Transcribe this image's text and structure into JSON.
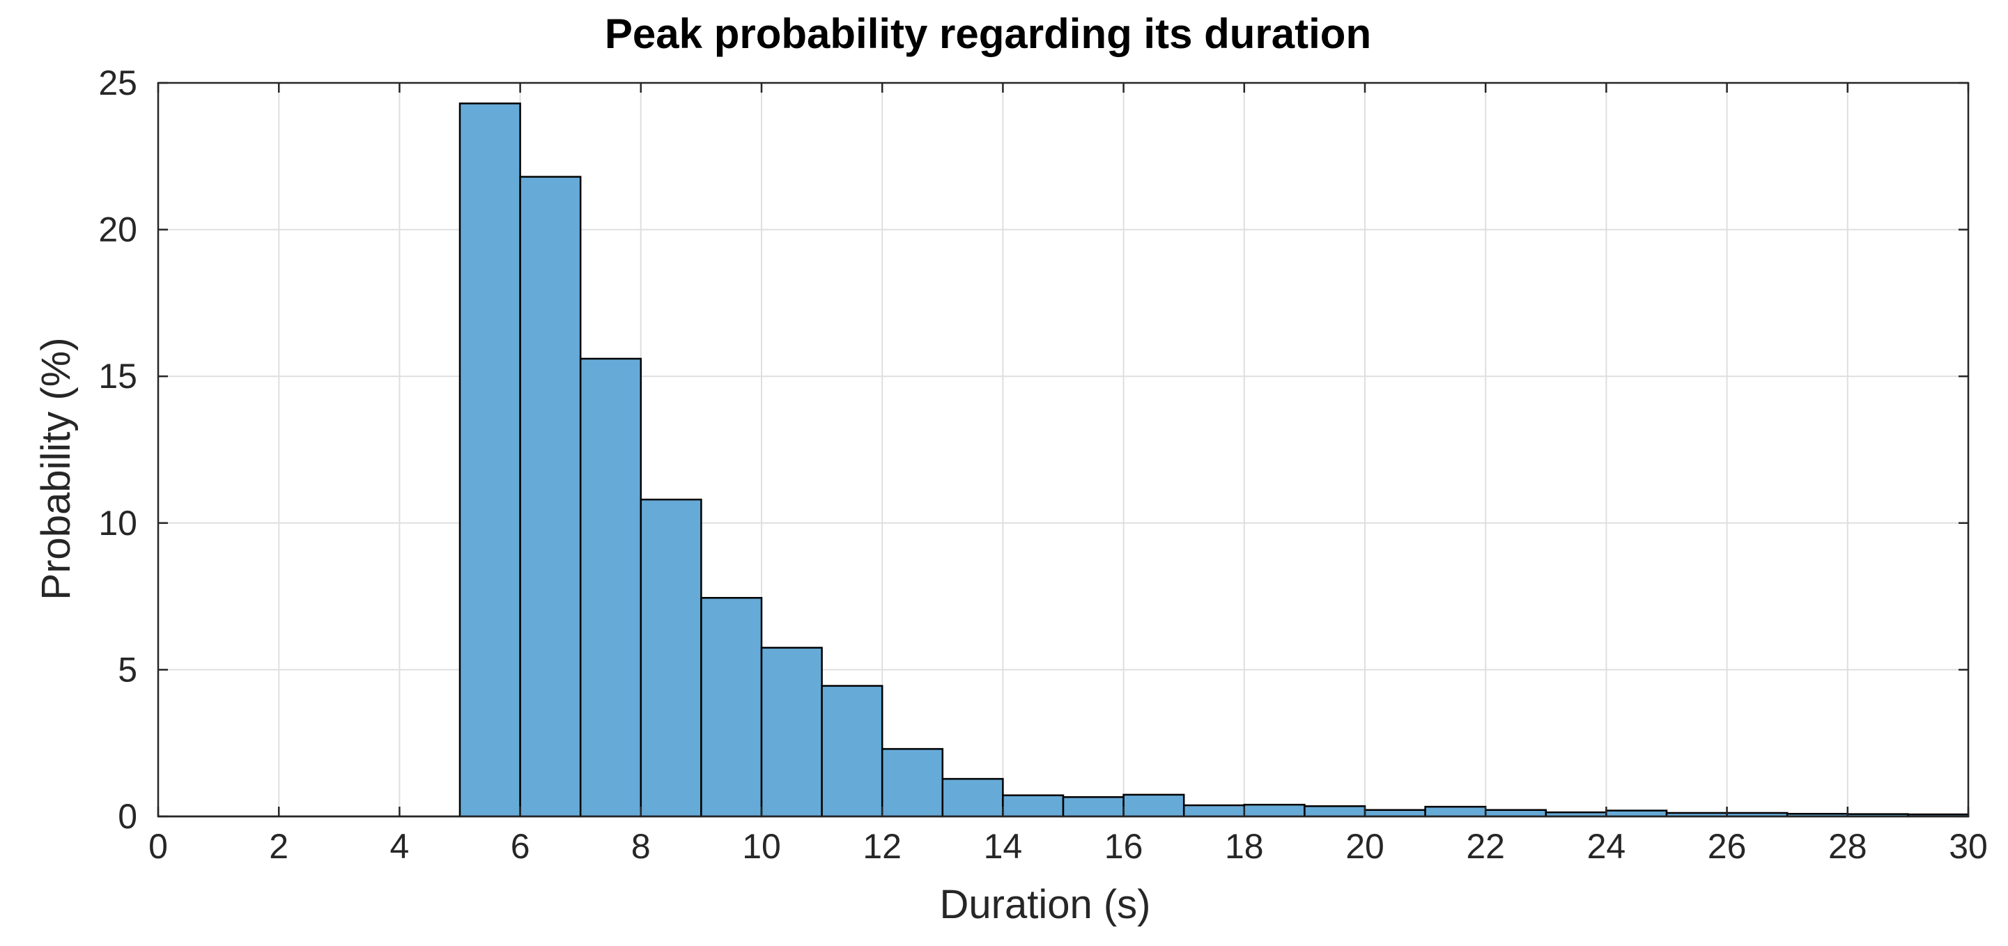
{
  "chart_data": {
    "type": "bar",
    "title": "Peak probability regarding its duration",
    "xlabel": "Duration (s)",
    "ylabel": "Probability (%)",
    "xlim": [
      0,
      30
    ],
    "ylim": [
      0,
      25
    ],
    "xticks": [
      0,
      2,
      4,
      6,
      8,
      10,
      12,
      14,
      16,
      18,
      20,
      22,
      24,
      26,
      28,
      30
    ],
    "yticks": [
      0,
      5,
      10,
      15,
      20,
      25
    ],
    "grid": true,
    "bar_color": "#66aad7",
    "bar_edge_color": "#000000",
    "bins": [
      {
        "x0": 0,
        "x1": 1,
        "value": 0
      },
      {
        "x0": 1,
        "x1": 2,
        "value": 0
      },
      {
        "x0": 2,
        "x1": 3,
        "value": 0
      },
      {
        "x0": 3,
        "x1": 4,
        "value": 0
      },
      {
        "x0": 4,
        "x1": 5,
        "value": 0
      },
      {
        "x0": 5,
        "x1": 6,
        "value": 24.3
      },
      {
        "x0": 6,
        "x1": 7,
        "value": 21.8
      },
      {
        "x0": 7,
        "x1": 8,
        "value": 15.6
      },
      {
        "x0": 8,
        "x1": 9,
        "value": 10.8
      },
      {
        "x0": 9,
        "x1": 10,
        "value": 7.45
      },
      {
        "x0": 10,
        "x1": 11,
        "value": 5.75
      },
      {
        "x0": 11,
        "x1": 12,
        "value": 4.45
      },
      {
        "x0": 12,
        "x1": 13,
        "value": 2.3
      },
      {
        "x0": 13,
        "x1": 14,
        "value": 1.28
      },
      {
        "x0": 14,
        "x1": 15,
        "value": 0.72
      },
      {
        "x0": 15,
        "x1": 16,
        "value": 0.66
      },
      {
        "x0": 16,
        "x1": 17,
        "value": 0.74
      },
      {
        "x0": 17,
        "x1": 18,
        "value": 0.38
      },
      {
        "x0": 18,
        "x1": 19,
        "value": 0.4
      },
      {
        "x0": 19,
        "x1": 20,
        "value": 0.35
      },
      {
        "x0": 20,
        "x1": 21,
        "value": 0.22
      },
      {
        "x0": 21,
        "x1": 22,
        "value": 0.33
      },
      {
        "x0": 22,
        "x1": 23,
        "value": 0.22
      },
      {
        "x0": 23,
        "x1": 24,
        "value": 0.14
      },
      {
        "x0": 24,
        "x1": 25,
        "value": 0.2
      },
      {
        "x0": 25,
        "x1": 26,
        "value": 0.12
      },
      {
        "x0": 26,
        "x1": 27,
        "value": 0.12
      },
      {
        "x0": 27,
        "x1": 28,
        "value": 0.09
      },
      {
        "x0": 28,
        "x1": 29,
        "value": 0.08
      },
      {
        "x0": 29,
        "x1": 30,
        "value": 0.07
      }
    ]
  }
}
